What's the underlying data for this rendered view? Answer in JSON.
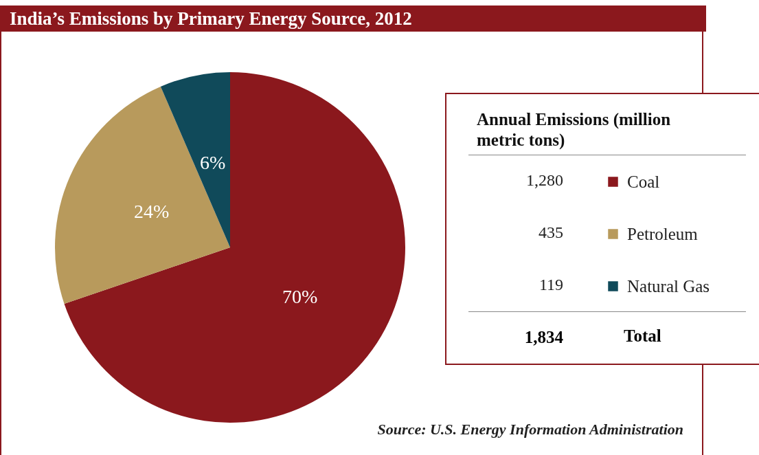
{
  "chart_data": {
    "type": "pie",
    "title": "India’s Emissions by Primary Energy Source, 2012",
    "legend_title": "Annual Emissions (million metric tons)",
    "legend": "right",
    "categories": [
      "Coal",
      "Petroleum",
      "Natural Gas"
    ],
    "values": [
      1280,
      435,
      119
    ],
    "colors": [
      "#8b181d",
      "#b89a5c",
      "#104a5a"
    ],
    "value_labels": [
      "1,280",
      "435",
      "119"
    ],
    "totals": [
      "1,834"
    ],
    "annotations": [
      {
        "text": "70%",
        "x": "Coal"
      },
      {
        "text": "24%",
        "x": "Petroleum"
      },
      {
        "text": "6%",
        "x": "Natural Gas"
      },
      "Total",
      "Source: U.S. Energy Information Administration"
    ]
  }
}
